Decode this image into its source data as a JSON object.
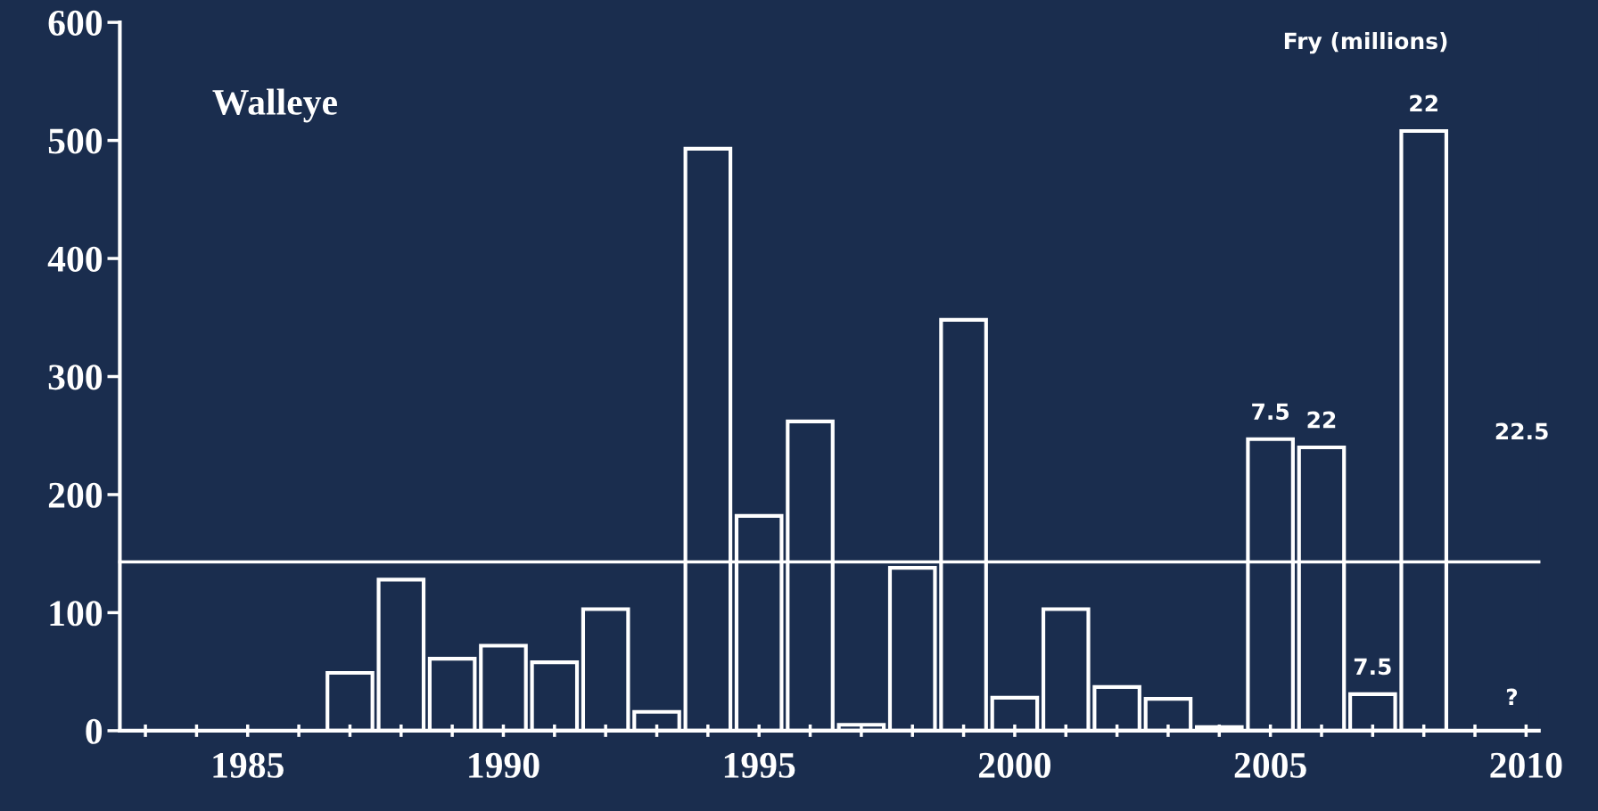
{
  "chart_data": {
    "type": "bar",
    "title": "Walleye",
    "x": [
      1987,
      1988,
      1989,
      1990,
      1991,
      1992,
      1993,
      1994,
      1995,
      1996,
      1997,
      1998,
      1999,
      2000,
      2001,
      2002,
      2003,
      2004,
      2005,
      2006,
      2007,
      2008
    ],
    "values": [
      49,
      128,
      61,
      72,
      58,
      103,
      16,
      493,
      182,
      262,
      5,
      138,
      348,
      28,
      103,
      37,
      27,
      3,
      247,
      240,
      31,
      508
    ],
    "color": "#ffffff",
    "xlim": [
      1982.5,
      2010.25
    ],
    "xticks": [
      {
        "value": 1983,
        "label": null
      },
      {
        "value": 1984,
        "label": null
      },
      1985,
      {
        "value": 1986,
        "label": null
      },
      {
        "value": 1987,
        "label": null
      },
      {
        "value": 1988,
        "label": null
      },
      {
        "value": 1989,
        "label": null
      },
      1990,
      {
        "value": 1991,
        "label": null
      },
      {
        "value": 1992,
        "label": null
      },
      {
        "value": 1993,
        "label": null
      },
      {
        "value": 1994,
        "label": null
      },
      1995,
      {
        "value": 1996,
        "label": null
      },
      {
        "value": 1997,
        "label": null
      },
      {
        "value": 1998,
        "label": null
      },
      {
        "value": 1999,
        "label": null
      },
      2000,
      {
        "value": 2001,
        "label": null
      },
      {
        "value": 2002,
        "label": null
      },
      {
        "value": 2003,
        "label": null
      },
      {
        "value": 2004,
        "label": null
      },
      2005,
      {
        "value": 2006,
        "label": null
      },
      {
        "value": 2007,
        "label": null
      },
      {
        "value": 2008,
        "label": null
      },
      {
        "value": 2009,
        "label": null
      },
      2010
    ],
    "ylim": [
      0,
      600
    ],
    "yticks": [
      0,
      100,
      200,
      300,
      400,
      500,
      600
    ],
    "ref_lines": [
      {
        "axis": "y",
        "value": 143,
        "color": "#ffffff"
      }
    ],
    "annotations": [
      "Fry (millions)",
      {
        "text": "7.5",
        "x": 2005,
        "y": 247
      },
      {
        "text": "22",
        "x": 2006,
        "y": 240
      },
      {
        "text": "7.5",
        "x": 2007,
        "y": 31
      },
      {
        "text": "22",
        "x": 2008,
        "y": 508
      },
      "22.5",
      "?"
    ],
    "grid": false,
    "legend": false
  }
}
